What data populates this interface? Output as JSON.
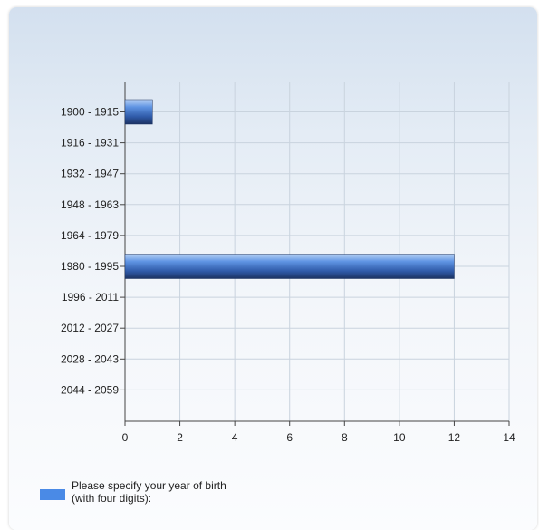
{
  "chart_data": {
    "type": "bar",
    "orientation": "horizontal",
    "categories": [
      "1900 - 1915",
      "1916 - 1931",
      "1932 - 1947",
      "1948 - 1963",
      "1964 - 1979",
      "1980 - 1995",
      "1996 - 2011",
      "2012 - 2027",
      "2028 - 2043",
      "2044 - 2059"
    ],
    "series": [
      {
        "name": "Please specify your year of birth (with four digits):",
        "values": [
          1,
          0,
          0,
          0,
          0,
          12,
          0,
          0,
          0,
          0
        ],
        "color": "#4a8ae6"
      }
    ],
    "xlim": [
      0,
      14
    ],
    "xticks": [
      0,
      2,
      4,
      6,
      8,
      10,
      12,
      14
    ],
    "grid": true,
    "legend": "bottom-left"
  }
}
